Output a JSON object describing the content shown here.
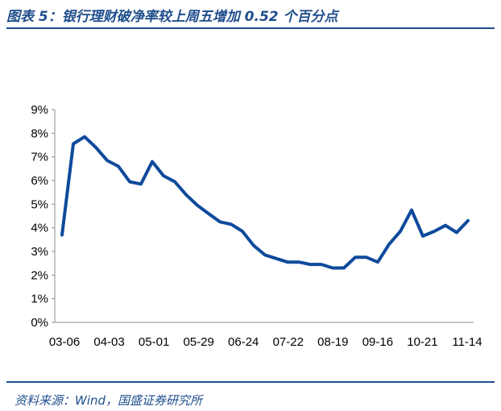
{
  "header": {
    "title": "图表 5：银行理财破净率较上周五增加 0.52 个百分点"
  },
  "footer": {
    "source": "资料来源：Wind，国盛证券研究所"
  },
  "chart_data": {
    "type": "line",
    "title": "",
    "xlabel": "",
    "ylabel": "",
    "ylim": [
      0,
      9
    ],
    "ytick_labels": [
      "0%",
      "1%",
      "2%",
      "3%",
      "4%",
      "5%",
      "6%",
      "7%",
      "8%",
      "9%"
    ],
    "xtick_labels": [
      "03-06",
      "04-03",
      "05-01",
      "05-29",
      "06-24",
      "07-22",
      "08-19",
      "09-16",
      "10-21",
      "11-14"
    ],
    "grid": false,
    "legend": "none",
    "color": "#0e4a9c",
    "series": [
      {
        "values": [
          3.7,
          7.55,
          7.85,
          7.4,
          6.85,
          6.6,
          5.95,
          5.85,
          6.8,
          6.2,
          5.95,
          5.4,
          4.95,
          4.6,
          4.25,
          4.15,
          3.85,
          3.25,
          2.85,
          2.7,
          2.55,
          2.55,
          2.45,
          2.45,
          2.3,
          2.3,
          2.75,
          2.75,
          2.55,
          3.3,
          3.85,
          4.75,
          3.65,
          3.85,
          4.1,
          3.8,
          4.3
        ]
      }
    ]
  }
}
